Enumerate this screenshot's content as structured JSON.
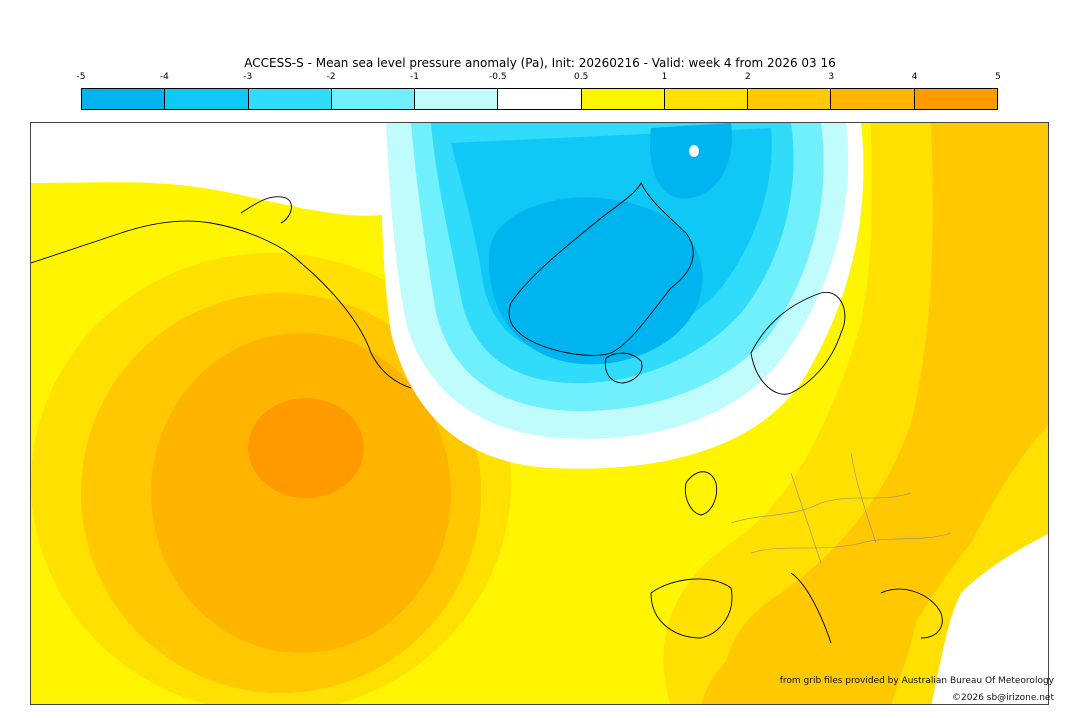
{
  "title": "ACCESS-S - Mean sea level pressure anomaly (Pa), Init: 20260216 - Valid: week 4 from 2026 03 16",
  "colorbar": {
    "ticks": [
      "-5",
      "-4",
      "-3",
      "-2",
      "-1",
      "-0.5",
      "0.5",
      "1",
      "2",
      "3",
      "4",
      "5"
    ],
    "colors": [
      "#00b4f0",
      "#10c8f5",
      "#30dcfa",
      "#70f0fc",
      "#c0fcfc",
      "#ffffff",
      "#fff500",
      "#ffe000",
      "#ffc800",
      "#ffb400",
      "#ff9a00"
    ]
  },
  "credits": {
    "line1": "from grib files provided by Australian Bureau Of Meteorology",
    "line2": "©2026 sb@irizone.net"
  }
}
